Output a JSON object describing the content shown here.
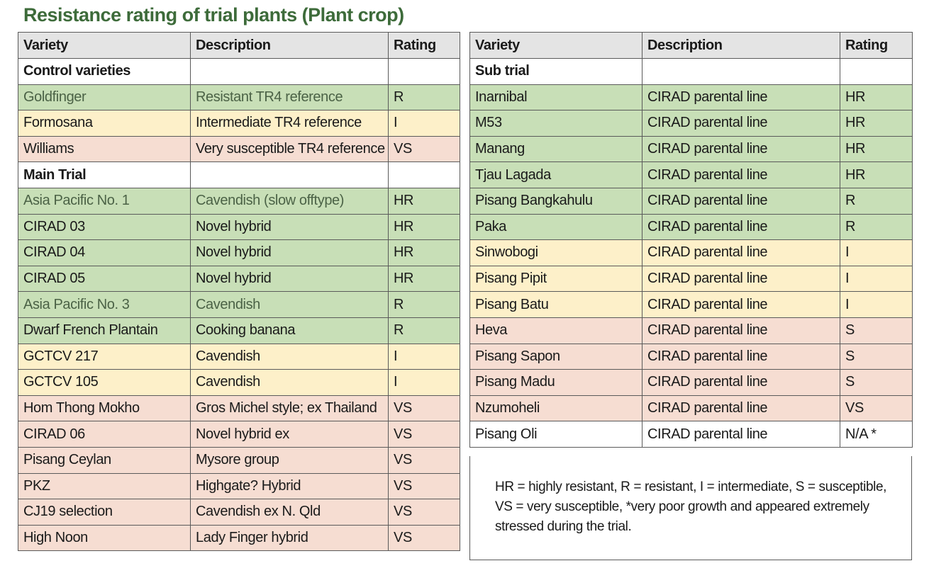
{
  "title": "Resistance rating of trial plants (Plant crop)",
  "colors": {
    "resistant": "#c8dfb7",
    "intermediate": "#fdf0c9",
    "susceptible": "#f6ddd2",
    "title": "#3d6b3a"
  },
  "left_table": {
    "headers": [
      "Variety",
      "Description",
      "Rating"
    ],
    "rows": [
      {
        "section": "Control varieties"
      },
      {
        "variety": "Goldfinger",
        "description": "Resistant TR4 reference",
        "rating": "R",
        "color": "g",
        "muted": true
      },
      {
        "variety": "Formosana",
        "description": "Intermediate TR4 reference",
        "rating": "I",
        "color": "y"
      },
      {
        "variety": "Williams",
        "description": "Very susceptible TR4 reference",
        "rating": "VS",
        "color": "p"
      },
      {
        "section": "Main Trial"
      },
      {
        "variety": "Asia Pacific No. 1",
        "description": "Cavendish (slow offtype)",
        "rating": "HR",
        "color": "g",
        "muted": true
      },
      {
        "variety": "CIRAD 03",
        "description": "Novel hybrid",
        "rating": "HR",
        "color": "g"
      },
      {
        "variety": "CIRAD 04",
        "description": "Novel hybrid",
        "rating": "HR",
        "color": "g"
      },
      {
        "variety": "CIRAD 05",
        "description": "Novel hybrid",
        "rating": "HR",
        "color": "g"
      },
      {
        "variety": "Asia Pacific No. 3",
        "description": "Cavendish",
        "rating": "R",
        "color": "g",
        "muted": true
      },
      {
        "variety": "Dwarf French Plantain",
        "description": "Cooking banana",
        "rating": "R",
        "color": "g"
      },
      {
        "variety": "GCTCV 217",
        "description": "Cavendish",
        "rating": "I",
        "color": "y"
      },
      {
        "variety": "GCTCV 105",
        "description": "Cavendish",
        "rating": "I",
        "color": "y"
      },
      {
        "variety": "Hom Thong Mokho",
        "description": "Gros Michel style; ex Thailand",
        "rating": "VS",
        "color": "p"
      },
      {
        "variety": "CIRAD 06",
        "description": "Novel hybrid ex",
        "rating": "VS",
        "color": "p"
      },
      {
        "variety": "Pisang Ceylan",
        "description": "Mysore group",
        "rating": "VS",
        "color": "p"
      },
      {
        "variety": "PKZ",
        "description": "Highgate? Hybrid",
        "rating": "VS",
        "color": "p"
      },
      {
        "variety": "CJ19 selection",
        "description": "Cavendish ex N. Qld",
        "rating": "VS",
        "color": "p"
      },
      {
        "variety": "High Noon",
        "description": "Lady Finger hybrid",
        "rating": "VS",
        "color": "p"
      }
    ]
  },
  "right_table": {
    "headers": [
      "Variety",
      "Description",
      "Rating"
    ],
    "rows": [
      {
        "section": "Sub trial"
      },
      {
        "variety": "Inarnibal",
        "description": "CIRAD parental line",
        "rating": "HR",
        "color": "g"
      },
      {
        "variety": "M53",
        "description": "CIRAD parental line",
        "rating": "HR",
        "color": "g"
      },
      {
        "variety": "Manang",
        "description": "CIRAD parental line",
        "rating": "HR",
        "color": "g"
      },
      {
        "variety": "Tjau Lagada",
        "description": "CIRAD parental line",
        "rating": "HR",
        "color": "g"
      },
      {
        "variety": "Pisang Bangkahulu",
        "description": "CIRAD parental line",
        "rating": "R",
        "color": "g"
      },
      {
        "variety": "Paka",
        "description": "CIRAD parental line",
        "rating": "R",
        "color": "g"
      },
      {
        "variety": "Sinwobogi",
        "description": "CIRAD parental line",
        "rating": "I",
        "color": "y"
      },
      {
        "variety": "Pisang Pipit",
        "description": "CIRAD parental line",
        "rating": "I",
        "color": "y"
      },
      {
        "variety": "Pisang Batu",
        "description": "CIRAD parental line",
        "rating": "I",
        "color": "y"
      },
      {
        "variety": "Heva",
        "description": "CIRAD parental line",
        "rating": "S",
        "color": "p"
      },
      {
        "variety": "Pisang Sapon",
        "description": "CIRAD parental line",
        "rating": "S",
        "color": "p"
      },
      {
        "variety": "Pisang Madu",
        "description": "CIRAD parental line",
        "rating": "S",
        "color": "p"
      },
      {
        "variety": "Nzumoheli",
        "description": "CIRAD parental line",
        "rating": "VS",
        "color": "p"
      },
      {
        "variety": "Pisang Oli",
        "description": "CIRAD parental line",
        "rating": "N/A *",
        "color": "w"
      }
    ]
  },
  "legend": "HR = highly resistant, R = resistant, I = intermediate, S = susceptible, VS = very susceptible, *very poor growth and appeared extremely stressed during the trial."
}
